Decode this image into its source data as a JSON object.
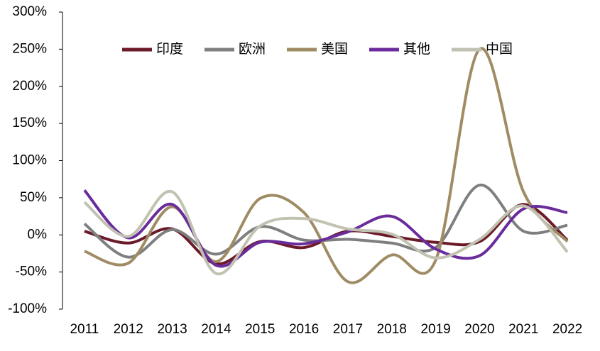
{
  "chart_data": {
    "type": "line",
    "smooth": true,
    "legend": "top",
    "categories": [
      "2011",
      "2012",
      "2013",
      "2014",
      "2015",
      "2016",
      "2017",
      "2018",
      "2019",
      "2020",
      "2021",
      "2022"
    ],
    "series": [
      {
        "name": "印度",
        "color": "#6b1a28",
        "values": [
          5,
          -11,
          8,
          -39,
          -9,
          -17,
          5,
          -2,
          -10,
          -9,
          41,
          -7
        ]
      },
      {
        "name": "欧洲",
        "color": "#7f7f7f",
        "values": [
          15,
          -30,
          7,
          -26,
          11,
          -7,
          -6,
          -11,
          -17,
          67,
          5,
          13
        ]
      },
      {
        "name": "美国",
        "color": "#a08c64",
        "values": [
          -22,
          -38,
          38,
          -36,
          49,
          30,
          -63,
          -27,
          -34,
          250,
          58,
          -9
        ]
      },
      {
        "name": "其他",
        "color": "#6a2c9c",
        "values": [
          60,
          -4,
          41,
          -41,
          -10,
          -12,
          4,
          25,
          -19,
          -28,
          35,
          30
        ]
      },
      {
        "name": "中国",
        "color": "#c2c2b2",
        "values": [
          44,
          -2,
          58,
          -52,
          12,
          22,
          8,
          1,
          -31,
          -6,
          39,
          -23
        ]
      }
    ],
    "ylim": [
      -100,
      300
    ],
    "yticks": [
      {
        "value": -100,
        "label": "-100%"
      },
      {
        "value": -50,
        "label": "-50%"
      },
      {
        "value": 0,
        "label": "0%"
      },
      {
        "value": 50,
        "label": "50%"
      },
      {
        "value": 100,
        "label": "100%"
      },
      {
        "value": 150,
        "label": "150%"
      },
      {
        "value": 200,
        "label": "200%"
      },
      {
        "value": 250,
        "label": "250%"
      },
      {
        "value": 300,
        "label": "300%"
      }
    ]
  }
}
